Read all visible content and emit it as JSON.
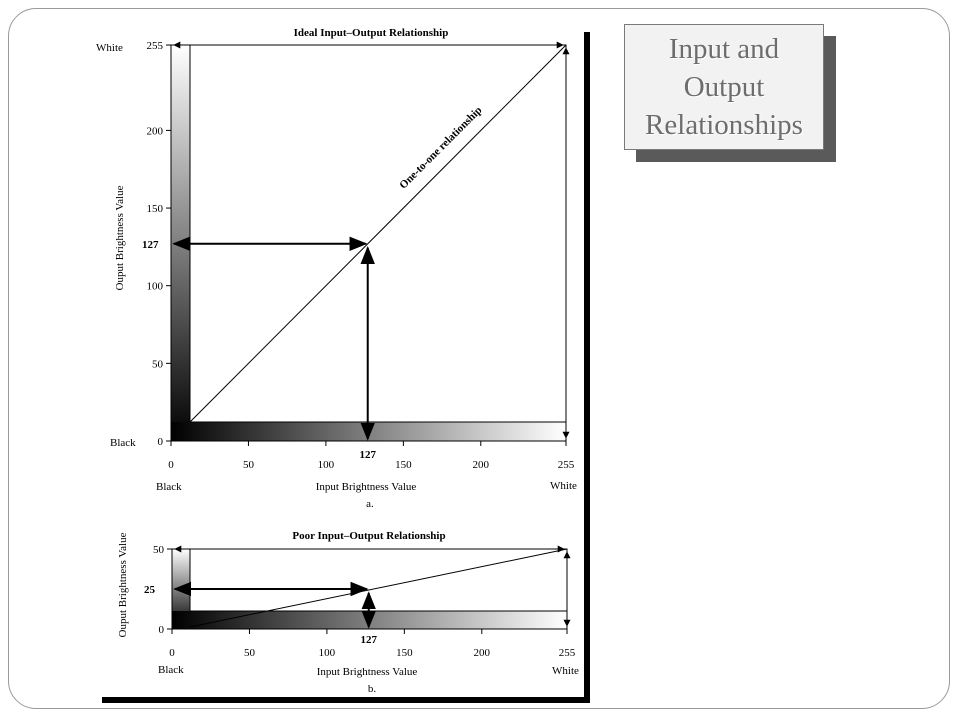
{
  "slide": {
    "title": "Input and Output Relationships"
  },
  "chart_data": [
    {
      "type": "line",
      "title": "Ideal Input–Output Relationship",
      "caption": "a.",
      "xlabel": "Input Brightness Value",
      "ylabel": "Ouput Brightness Value",
      "xlim": [
        0,
        255
      ],
      "ylim": [
        0,
        255
      ],
      "x_ticks": [
        0,
        50,
        100,
        150,
        200,
        255
      ],
      "y_ticks": [
        0,
        50,
        100,
        150,
        200,
        255
      ],
      "x_end_labels": {
        "min": "Black",
        "max": "White"
      },
      "y_end_labels": {
        "min": "Black",
        "max": "White"
      },
      "series": [
        {
          "x": [
            0,
            255
          ],
          "y": [
            0,
            255
          ]
        }
      ],
      "line_label": "One-to-one relationship",
      "highlight": {
        "input": 127,
        "output": 127,
        "input_label": "127",
        "output_label": "127"
      }
    },
    {
      "type": "line",
      "title": "Poor Input–Output Relationship",
      "caption": "b.",
      "xlabel": "Input Brightness Value",
      "ylabel": "Ouput Brightness Value",
      "xlim": [
        0,
        255
      ],
      "ylim": [
        0,
        50
      ],
      "x_ticks": [
        0,
        50,
        100,
        150,
        200,
        255
      ],
      "y_ticks": [
        0,
        50
      ],
      "x_end_labels": {
        "min": "Black",
        "max": "White"
      },
      "series": [
        {
          "x": [
            0,
            255
          ],
          "y": [
            0,
            50
          ]
        }
      ],
      "highlight": {
        "input": 127,
        "output": 25,
        "input_label": "127",
        "output_label": "25"
      }
    }
  ]
}
